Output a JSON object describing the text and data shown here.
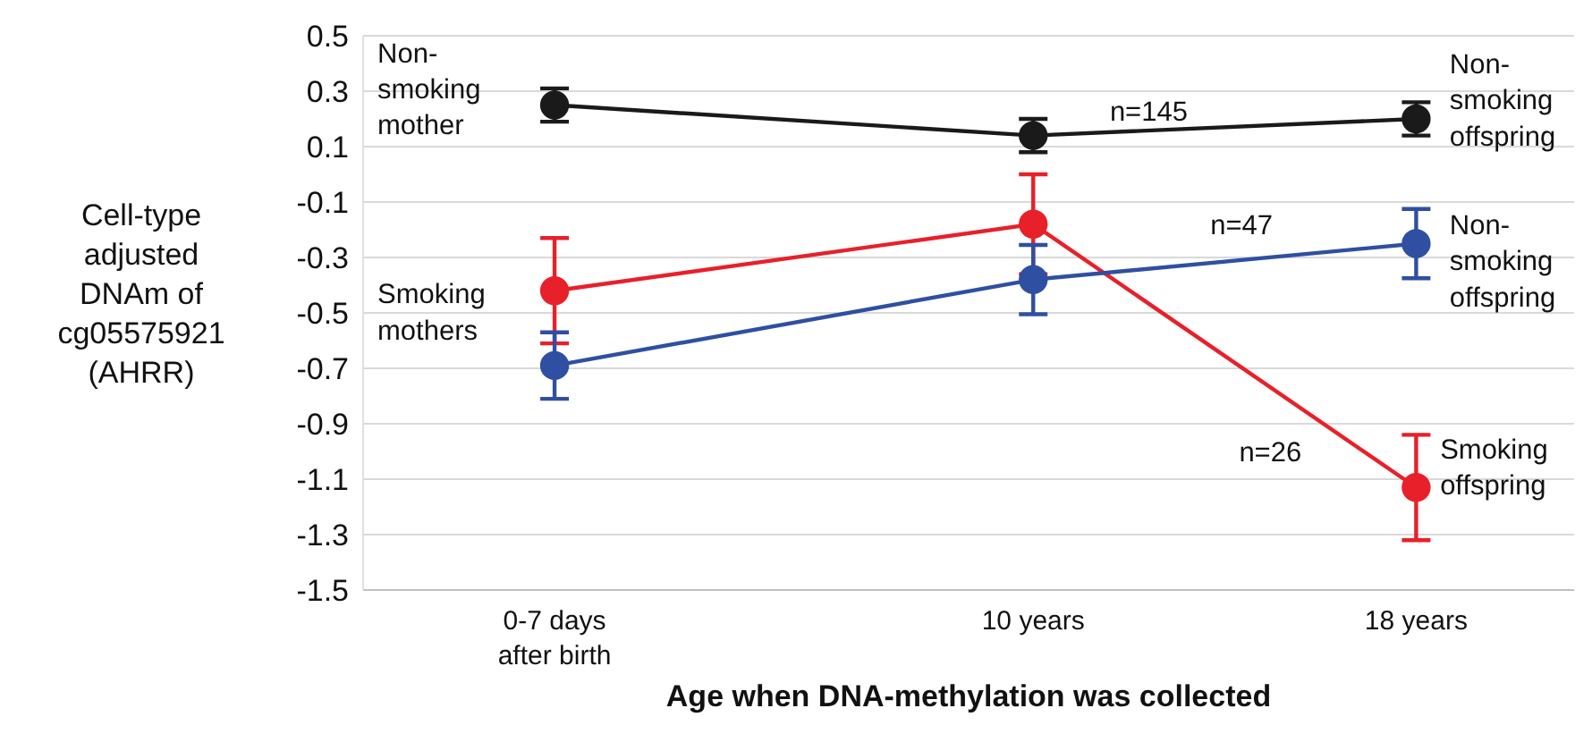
{
  "chart_data": {
    "type": "line",
    "xlabel": "Age when DNA-methylation was collected",
    "ylabel": "Cell-type\nadjusted\nDNAm of\ncg05575921\n(AHRR)",
    "x": [
      0,
      10,
      18
    ],
    "xlim": [
      -4,
      21.3
    ],
    "xticks": [
      {
        "value": 0,
        "label": "0-7 days\nafter birth"
      },
      {
        "value": 10,
        "label": "10 years"
      },
      {
        "value": 18,
        "label": "18 years"
      }
    ],
    "ylim": [
      -1.5,
      0.5
    ],
    "yticks": [
      -1.5,
      -1.3,
      -1.1,
      -0.9,
      -0.7,
      -0.5,
      -0.3,
      -0.1,
      0.1,
      0.3,
      0.5
    ],
    "grid": "y",
    "marker": "circle",
    "line_style": "solid",
    "legend": false,
    "series": [
      {
        "color": "#1a1a1a",
        "values": [
          0.25,
          0.14,
          0.2
        ],
        "errors": [
          0.06,
          0.06,
          0.06
        ]
      },
      {
        "color": "#e8202a",
        "values": [
          -0.42,
          -0.18,
          -1.13
        ],
        "errors": [
          0.19,
          0.18,
          0.19
        ]
      },
      {
        "color": "#2f4fa2",
        "values": [
          -0.69,
          -0.38,
          -0.25
        ],
        "errors": [
          0.12,
          0.125,
          0.125
        ]
      }
    ],
    "annotations": [
      "Non-\nsmoking\nmother",
      "Smoking\nmothers",
      "Non-\nsmoking\noffspring",
      "Non-\nsmoking\noffspring",
      "Smoking\noffspring",
      "n=145",
      "n=47",
      "n=26"
    ]
  }
}
